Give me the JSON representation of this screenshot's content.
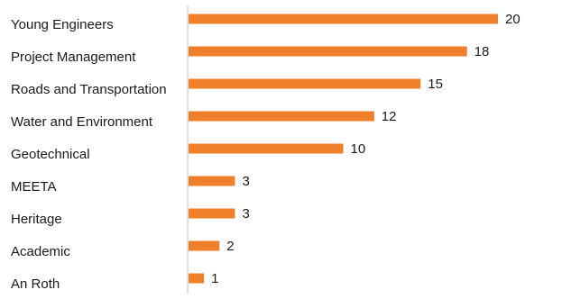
{
  "chart_data": {
    "type": "bar",
    "orientation": "horizontal",
    "categories": [
      "Young Engineers",
      "Project Management",
      "Roads and Transportation",
      "Water and Environment",
      "Geotechnical",
      "MEETA",
      "Heritage",
      "Academic",
      "An Roth"
    ],
    "values": [
      20,
      18,
      15,
      12,
      10,
      3,
      3,
      2,
      1
    ],
    "value_labels": [
      "20",
      "18",
      "15",
      "12",
      "10",
      "3",
      "3",
      "2",
      "1"
    ],
    "xlim": [
      0,
      20
    ],
    "grid": false,
    "legend": "none",
    "colors": {
      "bar": "#f07f2a",
      "axis": "#bfbfbf"
    }
  }
}
